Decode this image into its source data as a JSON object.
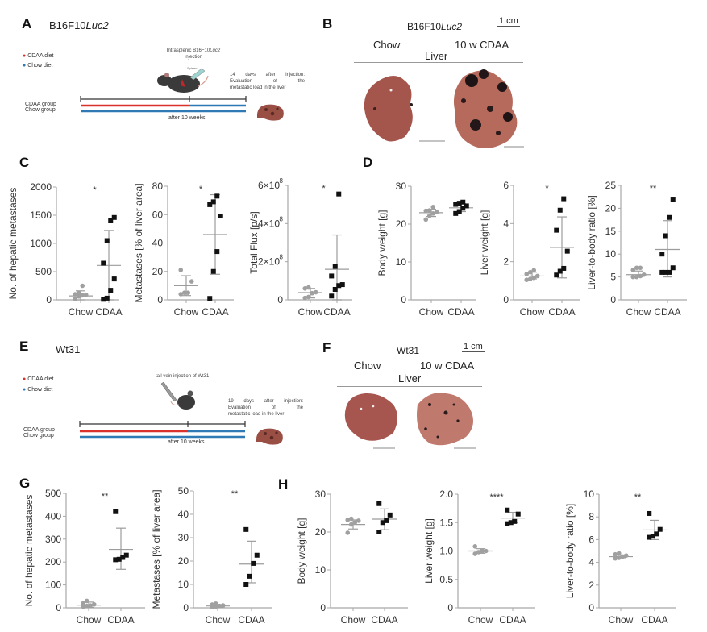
{
  "panels": {
    "A": {
      "letter": "A",
      "model_prefix": "B16F10",
      "model_italic": "Luc2",
      "legend": [
        {
          "label": "CDAA diet",
          "color": "#d9312b"
        },
        {
          "label": "Chow diet",
          "color": "#2f79b5"
        }
      ],
      "injection_prefix": "Intrasplenic B16F10",
      "injection_italic": "Luc2",
      "injection_suffix": "injection",
      "spleen_label": "Spleen",
      "evaluation_lines": [
        "14 days after injection:",
        "Evaluation of the",
        "metastatic load in the liver"
      ],
      "groups": [
        "CDAA group",
        "Chow group"
      ],
      "timeline_label": "after 10 weeks"
    },
    "B": {
      "letter": "B",
      "model_prefix": "B16F10",
      "model_italic": "Luc2",
      "scale": "1 cm",
      "col_left": "Chow",
      "col_right": "10 w CDAA",
      "organ": "Liver"
    },
    "C": {
      "letter": "C"
    },
    "D": {
      "letter": "D"
    },
    "E": {
      "letter": "E",
      "model": "Wt31",
      "legend": [
        {
          "label": "CDAA diet",
          "color": "#d9312b"
        },
        {
          "label": "Chow diet",
          "color": "#2f79b5"
        }
      ],
      "injection": "tail vein injection of Wt31",
      "evaluation_lines": [
        "19 days after injection:",
        "Evaluation of the",
        "metastatic load in the liver"
      ],
      "groups": [
        "CDAA group",
        "Chow group"
      ],
      "timeline_label": "after 10 weeks"
    },
    "F": {
      "letter": "F",
      "model": "Wt31",
      "scale": "1 cm",
      "col_left": "Chow",
      "col_right": "10 w CDAA",
      "organ": "Liver"
    },
    "G": {
      "letter": "G"
    },
    "H": {
      "letter": "H"
    }
  },
  "colors": {
    "chow": "#a0a0a0",
    "cdaa": "#111111",
    "axis": "#a8a8a8",
    "cdaa_diet": "#d9312b",
    "chow_diet": "#2f79b5",
    "liver": "#a0524a"
  },
  "chart_data": [
    {
      "id": "C1",
      "type": "scatter",
      "ylabel": "No. of hepatic metastases",
      "categories": [
        "Chow",
        "CDAA"
      ],
      "ylim": [
        0,
        2000
      ],
      "yticks": [
        "0",
        "500",
        "1000",
        "1500",
        "2000"
      ],
      "ytickvals": [
        0,
        500,
        1000,
        1500,
        2000
      ],
      "significance": "*",
      "series": [
        {
          "name": "Chow",
          "values": [
            20,
            60,
            80,
            90,
            100,
            120,
            250
          ],
          "mean": 70,
          "sd_low": 0,
          "sd_high": 160
        },
        {
          "name": "CDAA",
          "values": [
            10,
            30,
            170,
            370,
            650,
            1050,
            1400,
            1460
          ],
          "mean": 610,
          "sd_low": 0,
          "sd_high": 1230
        }
      ]
    },
    {
      "id": "C2",
      "type": "scatter",
      "ylabel": "Metastases [% of liver area]",
      "categories": [
        "Chow",
        "CDAA"
      ],
      "ylim": [
        0,
        80
      ],
      "yticks": [
        "0",
        "20",
        "40",
        "60",
        "80"
      ],
      "ytickvals": [
        0,
        20,
        40,
        60,
        80
      ],
      "significance": "*",
      "series": [
        {
          "name": "Chow",
          "values": [
            4,
            5,
            5,
            13,
            21
          ],
          "mean": 10,
          "sd_low": 3,
          "sd_high": 17
        },
        {
          "name": "CDAA",
          "values": [
            1,
            20,
            34,
            59,
            67,
            69,
            73
          ],
          "mean": 46,
          "sd_low": 18,
          "sd_high": 74
        }
      ]
    },
    {
      "id": "C3",
      "type": "scatter",
      "ylabel": "Total  Flux  [p/s]",
      "categories": [
        "Chow",
        "CDAA"
      ],
      "ylim": [
        0,
        6
      ],
      "yticks": [
        "0",
        "2×10",
        "4×10",
        "6×10"
      ],
      "ytick_exp": "8",
      "ytickvals": [
        0,
        2,
        4,
        6
      ],
      "yunit": "×10^8",
      "significance": "*",
      "series": [
        {
          "name": "Chow",
          "values": [
            0.1,
            0.15,
            0.35,
            0.4,
            0.6,
            0.65
          ],
          "mean": 0.38,
          "sd_low": 0.1,
          "sd_high": 0.6
        },
        {
          "name": "CDAA",
          "values": [
            0.2,
            0.55,
            0.75,
            0.8,
            1.25,
            1.75,
            5.55
          ],
          "mean": 1.6,
          "sd_low": 0,
          "sd_high": 3.4
        }
      ]
    },
    {
      "id": "D1",
      "type": "scatter",
      "ylabel": "Body weight [g]",
      "categories": [
        "Chow",
        "CDAA"
      ],
      "ylim": [
        0,
        30
      ],
      "yticks": [
        "0",
        "10",
        "20",
        "30"
      ],
      "ytickvals": [
        0,
        10,
        20,
        30
      ],
      "significance": "",
      "series": [
        {
          "name": "Chow",
          "values": [
            21.2,
            22.2,
            22.8,
            23.2,
            23.5,
            23.6,
            24.5
          ],
          "mean": 23,
          "sd_low": 22,
          "sd_high": 23.9
        },
        {
          "name": "CDAA",
          "values": [
            22.8,
            23.3,
            24.2,
            24.8,
            25.2,
            25.5,
            25.8
          ],
          "mean": 24.3,
          "sd_low": 23.3,
          "sd_high": 25.4
        }
      ]
    },
    {
      "id": "D2",
      "type": "scatter",
      "ylabel": "Liver weight [g]",
      "categories": [
        "Chow",
        "CDAA"
      ],
      "ylim": [
        0,
        6
      ],
      "yticks": [
        "0",
        "2",
        "4",
        "6"
      ],
      "ytickvals": [
        0,
        2,
        4,
        6
      ],
      "significance": "*",
      "series": [
        {
          "name": "Chow",
          "values": [
            1.05,
            1.1,
            1.15,
            1.25,
            1.35,
            1.45,
            1.55
          ],
          "mean": 1.25,
          "sd_low": 1.1,
          "sd_high": 1.45
        },
        {
          "name": "CDAA",
          "values": [
            1.3,
            1.5,
            1.65,
            2.55,
            3.65,
            4.7,
            5.3
          ],
          "mean": 2.75,
          "sd_low": 1.15,
          "sd_high": 4.35
        }
      ]
    },
    {
      "id": "D3",
      "type": "scatter",
      "ylabel": "Liver-to-body ratio [%]",
      "categories": [
        "Chow",
        "CDAA"
      ],
      "ylim": [
        0,
        25
      ],
      "yticks": [
        "0",
        "5",
        "10",
        "15",
        "20",
        "25"
      ],
      "ytickvals": [
        0,
        5,
        10,
        15,
        20,
        25
      ],
      "significance": "**",
      "series": [
        {
          "name": "Chow",
          "values": [
            5,
            5,
            5.2,
            5.5,
            6.5,
            7,
            7
          ],
          "mean": 5.5,
          "sd_low": 5,
          "sd_high": 6.3
        },
        {
          "name": "CDAA",
          "values": [
            6,
            6,
            6,
            7,
            10,
            14,
            18,
            22
          ],
          "mean": 11,
          "sd_low": 5,
          "sd_high": 17.3
        }
      ]
    },
    {
      "id": "G1",
      "type": "scatter",
      "ylabel": "No. of hepatic metastases",
      "categories": [
        "Chow",
        "CDAA"
      ],
      "ylim": [
        0,
        500
      ],
      "yticks": [
        "0",
        "100",
        "200",
        "300",
        "400",
        "500"
      ],
      "ytickvals": [
        0,
        100,
        200,
        300,
        400,
        500
      ],
      "significance": "**",
      "series": [
        {
          "name": "Chow",
          "values": [
            5,
            8,
            10,
            15,
            20,
            30
          ],
          "mean": 12,
          "sd_low": 2,
          "sd_high": 25
        },
        {
          "name": "CDAA",
          "values": [
            210,
            212,
            220,
            230,
            420
          ],
          "mean": 255,
          "sd_low": 168,
          "sd_high": 348
        }
      ]
    },
    {
      "id": "G2",
      "type": "scatter",
      "ylabel": "Metastases [% of liver area]",
      "categories": [
        "Chow",
        "CDAA"
      ],
      "ylim": [
        0,
        50
      ],
      "yticks": [
        "0",
        "10",
        "20",
        "30",
        "40",
        "50"
      ],
      "ytickvals": [
        0,
        10,
        20,
        30,
        40,
        50
      ],
      "significance": "**",
      "series": [
        {
          "name": "Chow",
          "values": [
            0.3,
            0.5,
            0.8,
            1,
            1.4,
            1.8
          ],
          "mean": 0.8,
          "sd_low": 0.2,
          "sd_high": 1.4
        },
        {
          "name": "CDAA",
          "values": [
            10,
            13.5,
            19,
            22.5,
            33.5
          ],
          "mean": 18.7,
          "sd_low": 10.7,
          "sd_high": 28.5
        }
      ]
    },
    {
      "id": "H1",
      "type": "scatter",
      "ylabel": "Body weight [g]",
      "categories": [
        "Chow",
        "CDAA"
      ],
      "ylim": [
        0,
        30
      ],
      "yticks": [
        "0",
        "10",
        "20",
        "30"
      ],
      "ytickvals": [
        0,
        10,
        20,
        30
      ],
      "significance": "",
      "series": [
        {
          "name": "Chow",
          "values": [
            19.8,
            22,
            22.5,
            23,
            23.2,
            23.5
          ],
          "mean": 22,
          "sd_low": 20.8,
          "sd_high": 23.2
        },
        {
          "name": "CDAA",
          "values": [
            20,
            22.5,
            23,
            24.5,
            27.5
          ],
          "mean": 23.4,
          "sd_low": 20.6,
          "sd_high": 26.1
        }
      ]
    },
    {
      "id": "H2",
      "type": "scatter",
      "ylabel": "Liver weight [g]",
      "categories": [
        "Chow",
        "CDAA"
      ],
      "ylim": [
        0,
        2
      ],
      "yticks": [
        "0",
        "0.5",
        "1.0",
        "1.5",
        "2.0"
      ],
      "ytickvals": [
        0,
        0.5,
        1,
        1.5,
        2
      ],
      "significance": "****",
      "series": [
        {
          "name": "Chow",
          "values": [
            0.95,
            0.98,
            1.0,
            1.0,
            1.08
          ],
          "mean": 1.0,
          "sd_low": 0.96,
          "sd_high": 1.04
        },
        {
          "name": "CDAA",
          "values": [
            1.48,
            1.5,
            1.52,
            1.65,
            1.72
          ],
          "mean": 1.58,
          "sd_low": 1.5,
          "sd_high": 1.68
        }
      ]
    },
    {
      "id": "H3",
      "type": "scatter",
      "ylabel": "Liver-to-body ratio [%]",
      "categories": [
        "Chow",
        "CDAA"
      ],
      "ylim": [
        0,
        10
      ],
      "yticks": [
        "0",
        "2",
        "4",
        "6",
        "8",
        "10"
      ],
      "ytickvals": [
        0,
        2,
        4,
        6,
        8,
        10
      ],
      "significance": "**",
      "series": [
        {
          "name": "Chow",
          "values": [
            4.35,
            4.4,
            4.5,
            4.6,
            4.7,
            4.8
          ],
          "mean": 4.5,
          "sd_low": 4.4,
          "sd_high": 4.65
        },
        {
          "name": "CDAA",
          "values": [
            6.2,
            6.3,
            6.5,
            6.9,
            8.3
          ],
          "mean": 6.85,
          "sd_low": 6.0,
          "sd_high": 7.7
        }
      ]
    }
  ]
}
